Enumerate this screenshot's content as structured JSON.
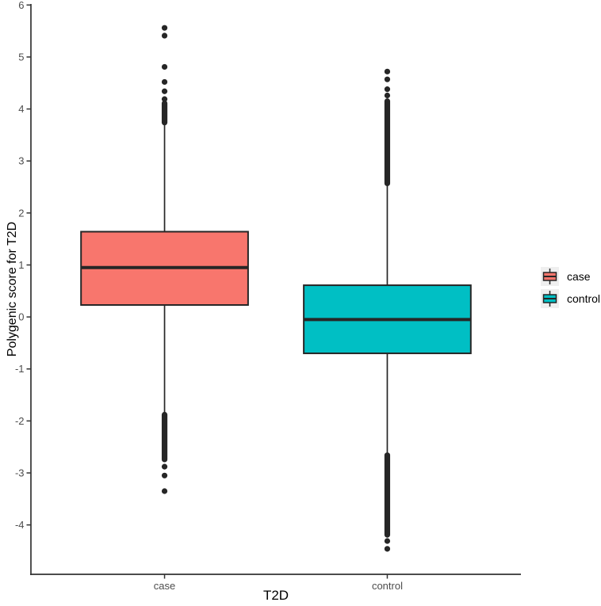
{
  "chart_data": {
    "type": "boxplot",
    "title": "",
    "xlabel": "T2D",
    "ylabel": "Polygenic score for T2D",
    "categories": [
      "case",
      "control"
    ],
    "ylim": [
      -4.95,
      6.02
    ],
    "yticks": [
      -4,
      -3,
      -2,
      -1,
      0,
      1,
      2,
      3,
      4,
      5,
      6
    ],
    "grid": false,
    "colors": {
      "axis": "#333333",
      "tick_text": "#4d4d4d",
      "box_stroke": "#262626",
      "outlier": "#262626",
      "legend_key_bg": "#efefef"
    },
    "legend": {
      "position": "right",
      "title": "",
      "items": [
        {
          "label": "case",
          "color": "#F8766D"
        },
        {
          "label": "control",
          "color": "#00BFC4"
        }
      ]
    },
    "series": [
      {
        "name": "case",
        "color": "#F8766D",
        "stats": {
          "q1": 0.23,
          "median": 0.95,
          "q3": 1.64,
          "whisker_low": -1.86,
          "whisker_high": 3.76
        },
        "outliers_high_points": [
          5.56,
          5.41,
          4.81,
          4.52,
          4.34,
          4.19
        ],
        "outliers_high_band": [
          3.74,
          4.11
        ],
        "outliers_low_band": [
          -2.74,
          -1.88
        ],
        "outliers_low_points": [
          -2.88,
          -3.05,
          -3.35
        ]
      },
      {
        "name": "control",
        "color": "#00BFC4",
        "stats": {
          "q1": -0.7,
          "median": -0.05,
          "q3": 0.61,
          "whisker_low": -2.63,
          "whisker_high": 2.56
        },
        "outliers_high_points": [
          4.72,
          4.57,
          4.38,
          4.26
        ],
        "outliers_high_band": [
          2.57,
          4.15
        ],
        "outliers_low_band": [
          -4.19,
          -2.66
        ],
        "outliers_low_points": [
          -4.31,
          -4.46
        ]
      }
    ]
  }
}
